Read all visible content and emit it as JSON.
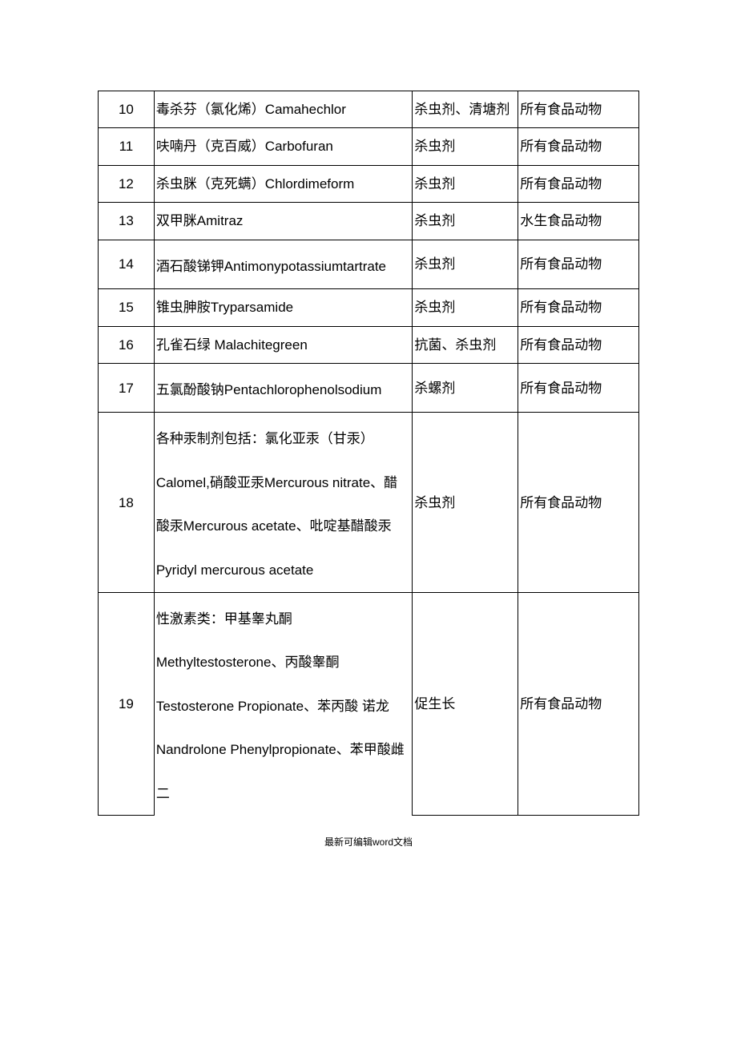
{
  "table": {
    "columns": {
      "num_width": 62,
      "name_width": 290,
      "use_width": 118,
      "scope_width": 135
    },
    "border_color": "#000000",
    "font_size": 17,
    "text_color": "#000000",
    "background_color": "#ffffff",
    "rows": [
      {
        "num": "10",
        "name": "毒杀芬（氯化烯）Camahechlor",
        "use": "杀虫剂、清塘剂",
        "scope": "所有食品动物"
      },
      {
        "num": "11",
        "name": "呋喃丹（克百威）Carbofuran",
        "use": "杀虫剂",
        "scope": "所有食品动物"
      },
      {
        "num": "12",
        "name": "杀虫脒（克死螨）Chlordimeform",
        "use": "杀虫剂",
        "scope": "所有食品动物"
      },
      {
        "num": "13",
        "name": "双甲脒Amitraz",
        "use": "杀虫剂",
        "scope": "水生食品动物"
      },
      {
        "num": "14",
        "name": "酒石酸锑钾Antimonypotassiumtartrate",
        "use": "杀虫剂",
        "scope": "所有食品动物"
      },
      {
        "num": "15",
        "name": "锥虫胂胺Tryparsamide",
        "use": "杀虫剂",
        "scope": "所有食品动物"
      },
      {
        "num": "16",
        "name": "孔雀石绿 Malachitegreen",
        "use": "抗菌、杀虫剂",
        "scope": "所有食品动物"
      },
      {
        "num": "17",
        "name": "五氯酚酸钠Pentachlorophenolsodium",
        "use": "杀螺剂",
        "scope": "所有食品动物"
      },
      {
        "num": "18",
        "name": "各种汞制剂包括：氯化亚汞（甘汞）Calomel,硝酸亚汞Mercurous nitrate、醋酸汞Mercurous acetate、吡啶基醋酸汞 Pyridyl mercurous acetate",
        "use": "杀虫剂",
        "scope": "所有食品动物"
      },
      {
        "num": "19",
        "name": "性激素类：甲基睾丸酮Methyltestosterone、丙酸睾酮Testosterone Propionate、苯丙酸 诺龙 Nandrolone Phenylpropionate、苯甲酸雌二",
        "use": "促生长",
        "scope": "所有食品动物"
      }
    ]
  },
  "footer": "最新可编辑word文档"
}
